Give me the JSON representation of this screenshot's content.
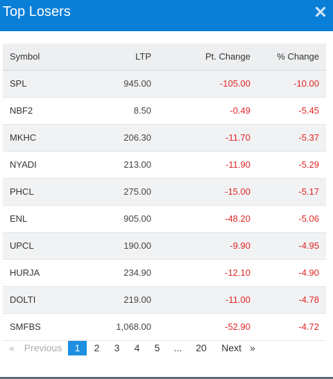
{
  "modal": {
    "title": "Top Losers",
    "close_icon": "close-icon",
    "header_color": "#0a7fd8"
  },
  "table": {
    "columns": [
      "Symbol",
      "LTP",
      "Pt. Change",
      "% Change"
    ],
    "rows": [
      {
        "symbol": "SPL",
        "ltp": "945.00",
        "pt_change": "-105.00",
        "pct_change": "-10.00"
      },
      {
        "symbol": "NBF2",
        "ltp": "8.50",
        "pt_change": "-0.49",
        "pct_change": "-5.45"
      },
      {
        "symbol": "MKHC",
        "ltp": "206.30",
        "pt_change": "-11.70",
        "pct_change": "-5.37"
      },
      {
        "symbol": "NYADI",
        "ltp": "213.00",
        "pt_change": "-11.90",
        "pct_change": "-5.29"
      },
      {
        "symbol": "PHCL",
        "ltp": "275.00",
        "pt_change": "-15.00",
        "pct_change": "-5.17"
      },
      {
        "symbol": "ENL",
        "ltp": "905.00",
        "pt_change": "-48.20",
        "pct_change": "-5.06"
      },
      {
        "symbol": "UPCL",
        "ltp": "190.00",
        "pt_change": "-9.90",
        "pct_change": "-4.95"
      },
      {
        "symbol": "HURJA",
        "ltp": "234.90",
        "pt_change": "-12.10",
        "pct_change": "-4.90"
      },
      {
        "symbol": "DOLTI",
        "ltp": "219.00",
        "pt_change": "-11.00",
        "pct_change": "-4.78"
      },
      {
        "symbol": "SMFBS",
        "ltp": "1,068.00",
        "pt_change": "-52.90",
        "pct_change": "-4.72"
      }
    ],
    "negative_color": "#e02424"
  },
  "pagination": {
    "first_arrow": "«",
    "previous_label": "Previous",
    "pages": [
      "1",
      "2",
      "3",
      "4",
      "5"
    ],
    "ellipsis": "...",
    "last_page": "20",
    "next_label": "Next",
    "last_arrow": "»",
    "current_page": "1",
    "active_color": "#1d8ee0"
  }
}
